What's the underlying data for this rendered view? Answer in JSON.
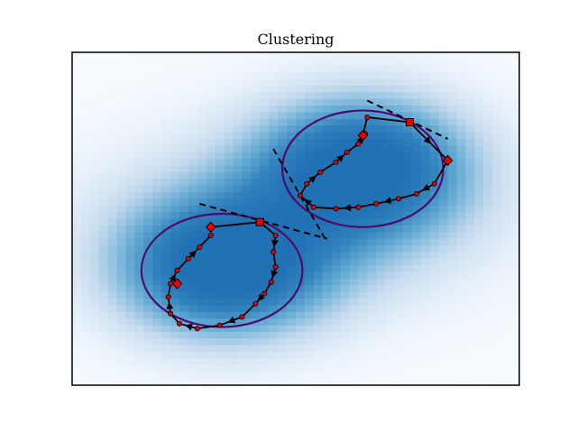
{
  "chart_data": {
    "type": "scatter",
    "title": "Clustering",
    "xlabel": "",
    "ylabel": "",
    "show_ticks": false,
    "grid": false,
    "xlim": [
      0,
      100
    ],
    "ylim": [
      0,
      100
    ],
    "background": {
      "kind": "density-heatmap",
      "colormap": "Blues",
      "peaks": [
        {
          "x": 34,
          "y": 35,
          "sx": 16,
          "sy": 14,
          "amp": 1.0
        },
        {
          "x": 65,
          "y": 66,
          "sx": 16,
          "sy": 14,
          "amp": 1.0
        },
        {
          "x": 50,
          "y": 50,
          "sx": 28,
          "sy": 18,
          "amp": 0.35
        }
      ]
    },
    "clusters": [
      {
        "center": [
          33.5,
          34.5
        ],
        "rx": 18,
        "ry": 17,
        "color": "#4b0c6b"
      },
      {
        "center": [
          65,
          65
        ],
        "rx": 18,
        "ry": 17.5,
        "color": "#4b0c6b"
      }
    ],
    "dashed_lines": [
      {
        "points": [
          [
            28.5,
            54.5
          ],
          [
            57,
            44
          ]
        ]
      },
      {
        "points": [
          [
            45,
            71
          ],
          [
            57,
            43
          ]
        ]
      },
      {
        "points": [
          [
            66,
            85.5
          ],
          [
            84,
            74
          ]
        ]
      }
    ],
    "trajectories": [
      {
        "name": "",
        "points": [
          [
            65,
            75
          ],
          [
            66,
            80.5
          ],
          [
            75.5,
            79
          ],
          [
            84,
            67.5
          ],
          [
            81,
            60.5
          ],
          [
            77,
            57.5
          ],
          [
            73,
            56
          ],
          [
            68,
            54.5
          ],
          [
            64,
            53.5
          ],
          [
            59,
            53
          ],
          [
            54,
            53.5
          ],
          [
            51,
            57
          ],
          [
            52.5,
            60.5
          ],
          [
            55.5,
            64
          ],
          [
            59,
            67
          ],
          [
            61.5,
            70
          ],
          [
            64,
            72.5
          ],
          [
            65.5,
            75.5
          ]
        ],
        "square_index": 2,
        "diamond_indices": [
          0,
          3
        ]
      },
      {
        "name": "",
        "points": [
          [
            31,
            47.5
          ],
          [
            42,
            49
          ],
          [
            45.5,
            45
          ],
          [
            45,
            40
          ],
          [
            45.5,
            35.5
          ],
          [
            44.5,
            31
          ],
          [
            43,
            27.5
          ],
          [
            41,
            24.5
          ],
          [
            38,
            20.5
          ],
          [
            33,
            18
          ],
          [
            28,
            17
          ],
          [
            24,
            18.5
          ],
          [
            22,
            21.5
          ],
          [
            21.5,
            26.5
          ],
          [
            22,
            30.5
          ],
          [
            23.5,
            34.5
          ],
          [
            26,
            38
          ],
          [
            28.5,
            41.5
          ],
          [
            31,
            45
          ]
        ],
        "square_index": 1,
        "diamond_indices": [
          0
        ]
      }
    ],
    "extra_markers": [
      {
        "shape": "diamond",
        "at": [
          23.5,
          30.5
        ]
      }
    ]
  }
}
